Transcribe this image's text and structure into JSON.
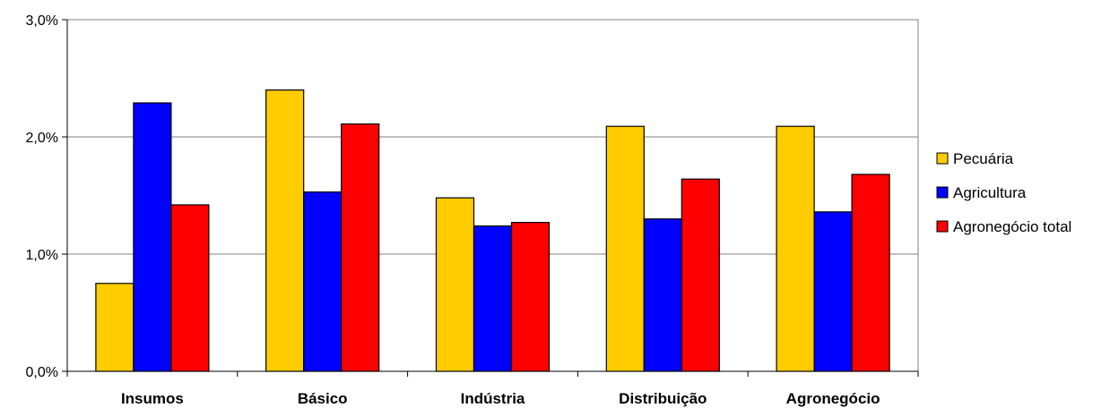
{
  "chart_data": {
    "type": "bar",
    "title": "",
    "xlabel": "",
    "ylabel": "",
    "categories": [
      "Insumos",
      "Básico",
      "Indústria",
      "Distribuição",
      "Agronegócio"
    ],
    "series": [
      {
        "name": "Pecuária",
        "color": "#FFCC00",
        "values": [
          0.75,
          2.4,
          1.48,
          2.09,
          2.09
        ]
      },
      {
        "name": "Agricultura",
        "color": "#0000FF",
        "values": [
          2.29,
          1.53,
          1.24,
          1.3,
          1.36
        ]
      },
      {
        "name": "Agronegócio total",
        "color": "#FF0000",
        "values": [
          1.42,
          2.11,
          1.27,
          1.64,
          1.68
        ]
      }
    ],
    "ylim": [
      0,
      3
    ],
    "yticks": [
      0,
      1,
      2,
      3
    ],
    "ytick_labels": [
      "0,0%",
      "1,0%",
      "2,0%",
      "3,0%"
    ],
    "grid": true,
    "legend_position": "right"
  }
}
